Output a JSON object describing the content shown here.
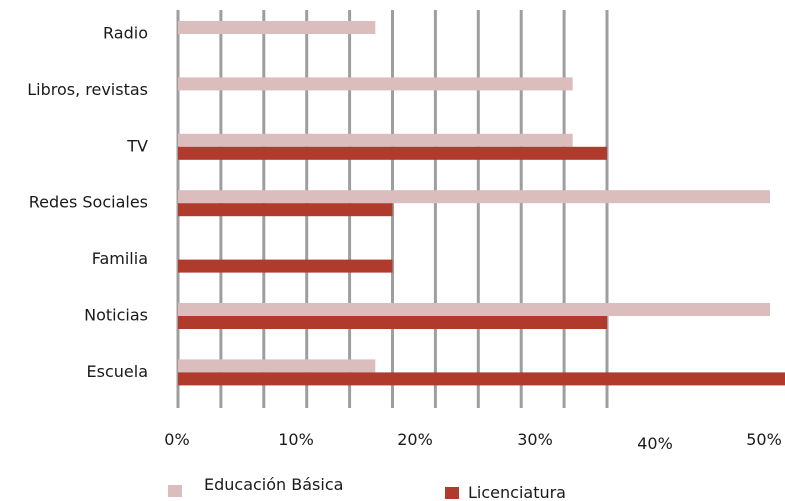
{
  "chart_data": {
    "type": "bar",
    "orientation": "horizontal",
    "categories": [
      "Radio",
      "Libros, revistas",
      "TV",
      "Redes Sociales",
      "Familia",
      "Noticias",
      "Escuela"
    ],
    "series": [
      {
        "name": "Educación Básica",
        "color": "#dbbdbd",
        "values": [
          11.5,
          23.0,
          23.0,
          34.5,
          0,
          34.5,
          11.5
        ]
      },
      {
        "name": "Licenciatura",
        "color": "#b03a2b",
        "values": [
          0,
          0,
          25.0,
          12.5,
          12.5,
          25.0,
          62.5
        ]
      }
    ],
    "xticks": [
      "0%",
      "10%",
      "20%",
      "30%",
      "40%",
      "50%"
    ],
    "xlim": [
      0,
      62.5
    ],
    "grid": "vertical",
    "grid_color": "#9e9e9e",
    "legend_position": "bottom"
  }
}
